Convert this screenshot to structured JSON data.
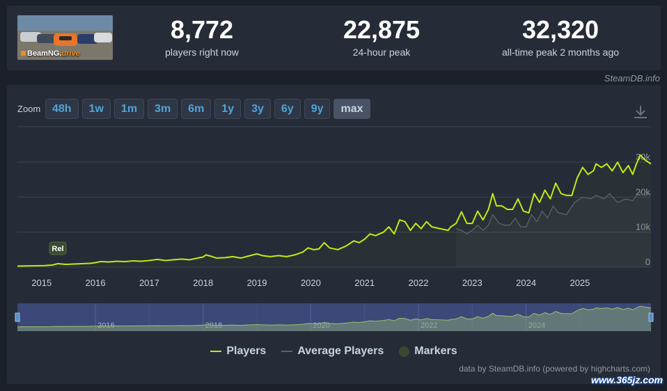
{
  "game": {
    "logo_prefix": "BeamNG.",
    "logo_suffix": "drive"
  },
  "stats": [
    {
      "value": "8,772",
      "label": "players right now"
    },
    {
      "value": "22,875",
      "label": "24-hour peak"
    },
    {
      "value": "32,320",
      "label": "all-time peak 2 months ago"
    }
  ],
  "credit_top": "SteamDB.info",
  "zoom": {
    "label": "Zoom",
    "buttons": [
      "48h",
      "1w",
      "1m",
      "3m",
      "6m",
      "1y",
      "3y",
      "6y",
      "9y",
      "max"
    ],
    "active": "max"
  },
  "download_icon": "download-icon",
  "legend": [
    {
      "label": "Players",
      "color": "#beee11",
      "kind": "line"
    },
    {
      "label": "Average Players",
      "color": "#5b6270",
      "kind": "line"
    },
    {
      "label": "Markers",
      "color": "#3a4a30",
      "kind": "dot"
    }
  ],
  "credit_bottom": "data by SteamDB.info (powered by highcharts.com)",
  "watermark": "www.365jz.com",
  "chart_data": {
    "type": "line",
    "x_start": "2014-07",
    "x_end": "2025-10",
    "x_ticks": [
      "2015",
      "2016",
      "2017",
      "2018",
      "2019",
      "2020",
      "2021",
      "2022",
      "2023",
      "2024",
      "2025"
    ],
    "y_ticks": [
      "0",
      "10k",
      "20k",
      "30k"
    ],
    "ylim": [
      0,
      30000
    ],
    "grid": true,
    "marker": {
      "label": "Rel",
      "x": 2015.3
    },
    "series": [
      {
        "name": "Players",
        "color": "#beee11",
        "points": [
          [
            2014.55,
            300
          ],
          [
            2014.7,
            350
          ],
          [
            2014.9,
            400
          ],
          [
            2015.05,
            450
          ],
          [
            2015.2,
            600
          ],
          [
            2015.3,
            1000
          ],
          [
            2015.45,
            800
          ],
          [
            2015.6,
            900
          ],
          [
            2015.75,
            1000
          ],
          [
            2015.9,
            1100
          ],
          [
            2016.0,
            1300
          ],
          [
            2016.1,
            1600
          ],
          [
            2016.25,
            1500
          ],
          [
            2016.4,
            1700
          ],
          [
            2016.55,
            1600
          ],
          [
            2016.7,
            1800
          ],
          [
            2016.85,
            1700
          ],
          [
            2017.0,
            1900
          ],
          [
            2017.15,
            2200
          ],
          [
            2017.3,
            1900
          ],
          [
            2017.45,
            2100
          ],
          [
            2017.6,
            2300
          ],
          [
            2017.75,
            2100
          ],
          [
            2017.9,
            2600
          ],
          [
            2018.0,
            2900
          ],
          [
            2018.05,
            3500
          ],
          [
            2018.15,
            3100
          ],
          [
            2018.25,
            2600
          ],
          [
            2018.4,
            2700
          ],
          [
            2018.55,
            3000
          ],
          [
            2018.7,
            2600
          ],
          [
            2018.85,
            3200
          ],
          [
            2019.0,
            3800
          ],
          [
            2019.1,
            3300
          ],
          [
            2019.25,
            3000
          ],
          [
            2019.4,
            3300
          ],
          [
            2019.55,
            3000
          ],
          [
            2019.7,
            3500
          ],
          [
            2019.85,
            4300
          ],
          [
            2019.95,
            5500
          ],
          [
            2020.05,
            5000
          ],
          [
            2020.15,
            5200
          ],
          [
            2020.25,
            7000
          ],
          [
            2020.35,
            5500
          ],
          [
            2020.5,
            5000
          ],
          [
            2020.65,
            6000
          ],
          [
            2020.8,
            7500
          ],
          [
            2020.9,
            7000
          ],
          [
            2021.0,
            8000
          ],
          [
            2021.1,
            9500
          ],
          [
            2021.2,
            9000
          ],
          [
            2021.35,
            10000
          ],
          [
            2021.45,
            11500
          ],
          [
            2021.55,
            9500
          ],
          [
            2021.65,
            13500
          ],
          [
            2021.75,
            13000
          ],
          [
            2021.85,
            10500
          ],
          [
            2021.95,
            12500
          ],
          [
            2022.05,
            11000
          ],
          [
            2022.15,
            13000
          ],
          [
            2022.25,
            11500
          ],
          [
            2022.4,
            11000
          ],
          [
            2022.55,
            10500
          ],
          [
            2022.6,
            11500
          ],
          [
            2022.7,
            12500
          ],
          [
            2022.8,
            15800
          ],
          [
            2022.9,
            12500
          ],
          [
            2023.0,
            12500
          ],
          [
            2023.1,
            16000
          ],
          [
            2023.2,
            13500
          ],
          [
            2023.3,
            16500
          ],
          [
            2023.38,
            21000
          ],
          [
            2023.45,
            17500
          ],
          [
            2023.55,
            17500
          ],
          [
            2023.65,
            16500
          ],
          [
            2023.75,
            16500
          ],
          [
            2023.85,
            19500
          ],
          [
            2023.95,
            16000
          ],
          [
            2024.05,
            15500
          ],
          [
            2024.15,
            21000
          ],
          [
            2024.25,
            18500
          ],
          [
            2024.35,
            22000
          ],
          [
            2024.45,
            19500
          ],
          [
            2024.55,
            24000
          ],
          [
            2024.65,
            21000
          ],
          [
            2024.75,
            20500
          ],
          [
            2024.85,
            20500
          ],
          [
            2024.95,
            25500
          ],
          [
            2025.05,
            28500
          ],
          [
            2025.15,
            26500
          ],
          [
            2025.25,
            27500
          ],
          [
            2025.3,
            29500
          ],
          [
            2025.4,
            28500
          ],
          [
            2025.5,
            29500
          ],
          [
            2025.6,
            27500
          ],
          [
            2025.7,
            30000
          ],
          [
            2025.8,
            27000
          ],
          [
            2025.9,
            29000
          ],
          [
            2025.98,
            26500
          ],
          [
            2026.05,
            29500
          ],
          [
            2026.12,
            32000
          ],
          [
            2026.22,
            30500
          ],
          [
            2026.32,
            29500
          ]
        ]
      },
      {
        "name": "Average Players",
        "color": "#5b6270",
        "points": [
          [
            2022.7,
            11000
          ],
          [
            2022.8,
            10500
          ],
          [
            2022.9,
            9500
          ],
          [
            2023.0,
            10500
          ],
          [
            2023.1,
            12000
          ],
          [
            2023.2,
            10500
          ],
          [
            2023.3,
            12000
          ],
          [
            2023.38,
            15000
          ],
          [
            2023.5,
            12500
          ],
          [
            2023.6,
            12000
          ],
          [
            2023.7,
            12000
          ],
          [
            2023.8,
            14000
          ],
          [
            2023.9,
            11500
          ],
          [
            2024.0,
            11500
          ],
          [
            2024.1,
            15000
          ],
          [
            2024.2,
            13000
          ],
          [
            2024.3,
            16000
          ],
          [
            2024.4,
            14000
          ],
          [
            2024.5,
            17500
          ],
          [
            2024.6,
            15500
          ],
          [
            2024.75,
            15000
          ],
          [
            2024.9,
            18500
          ],
          [
            2025.05,
            20000
          ],
          [
            2025.2,
            19500
          ],
          [
            2025.3,
            20500
          ],
          [
            2025.45,
            19500
          ],
          [
            2025.55,
            21000
          ],
          [
            2025.7,
            18500
          ],
          [
            2025.85,
            19500
          ],
          [
            2025.98,
            19000
          ],
          [
            2026.1,
            21500
          ],
          [
            2026.2,
            20500
          ],
          [
            2026.32,
            21000
          ]
        ]
      }
    ]
  }
}
